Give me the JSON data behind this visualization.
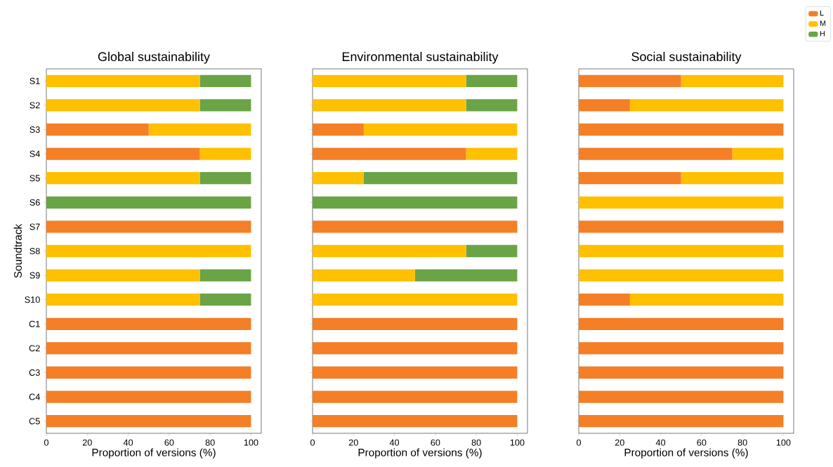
{
  "chart_data": [
    {
      "type": "bar",
      "orientation": "horizontal",
      "stacked": true,
      "title": "Global sustainability",
      "xlabel": "Proportion of versions (%)",
      "ylabel": "Soundtrack",
      "categories": [
        "S1",
        "S2",
        "S3",
        "S4",
        "S5",
        "S6",
        "S7",
        "S8",
        "S9",
        "S10",
        "C1",
        "C2",
        "C3",
        "C4",
        "C5"
      ],
      "series": [
        {
          "color": "#f47f26",
          "values": [
            0,
            0,
            50,
            75,
            0,
            0,
            100,
            0,
            0,
            0,
            100,
            100,
            100,
            100,
            100
          ]
        },
        {
          "color": "#ffc000",
          "values": [
            75,
            75,
            50,
            25,
            75,
            0,
            0,
            100,
            75,
            75,
            0,
            0,
            0,
            0,
            0
          ]
        },
        {
          "color": "#6aa446",
          "values": [
            25,
            25,
            0,
            0,
            25,
            100,
            0,
            0,
            25,
            25,
            0,
            0,
            0,
            0,
            0
          ]
        }
      ],
      "xlim": [
        0,
        105
      ],
      "xticks": [
        0,
        20,
        40,
        60,
        80,
        100
      ],
      "legend": false
    },
    {
      "type": "bar",
      "orientation": "horizontal",
      "stacked": true,
      "title": "Environmental sustainability",
      "xlabel": "Proportion of versions (%)",
      "categories": [
        null,
        null,
        null,
        null,
        null,
        null,
        null,
        null,
        null,
        null,
        null,
        null,
        null,
        null,
        null
      ],
      "series": [
        {
          "color": "#f47f26",
          "values": [
            0,
            0,
            25,
            75,
            0,
            0,
            100,
            0,
            0,
            0,
            100,
            100,
            100,
            100,
            100
          ]
        },
        {
          "color": "#ffc000",
          "values": [
            75,
            75,
            75,
            25,
            25,
            0,
            0,
            75,
            50,
            100,
            0,
            0,
            0,
            0,
            0
          ]
        },
        {
          "color": "#6aa446",
          "values": [
            25,
            25,
            0,
            0,
            75,
            100,
            0,
            25,
            50,
            0,
            0,
            0,
            0,
            0,
            0
          ]
        }
      ],
      "xlim": [
        0,
        105
      ],
      "xticks": [
        0,
        20,
        40,
        60,
        80,
        100
      ],
      "tick_labels": "x",
      "legend": false
    },
    {
      "type": "bar",
      "orientation": "horizontal",
      "stacked": true,
      "title": "Social sustainability",
      "xlabel": "Proportion of versions (%)",
      "categories": [
        null,
        null,
        null,
        null,
        null,
        null,
        null,
        null,
        null,
        null,
        null,
        null,
        null,
        null,
        null
      ],
      "series": [
        {
          "name": "L",
          "color": "#f47f26",
          "values": [
            50,
            25,
            100,
            75,
            50,
            0,
            100,
            0,
            0,
            25,
            100,
            100,
            100,
            100,
            100
          ]
        },
        {
          "name": "M",
          "color": "#ffc000",
          "values": [
            50,
            75,
            0,
            25,
            50,
            100,
            0,
            100,
            100,
            75,
            0,
            0,
            0,
            0,
            0
          ]
        },
        {
          "name": "H",
          "color": "#6aa446",
          "values": [
            0,
            0,
            0,
            0,
            0,
            0,
            0,
            0,
            0,
            0,
            0,
            0,
            0,
            0,
            0
          ]
        }
      ],
      "xlim": [
        0,
        105
      ],
      "xticks": [
        0,
        20,
        40,
        60,
        80,
        100
      ],
      "tick_labels": "x",
      "legend": "top right"
    }
  ]
}
